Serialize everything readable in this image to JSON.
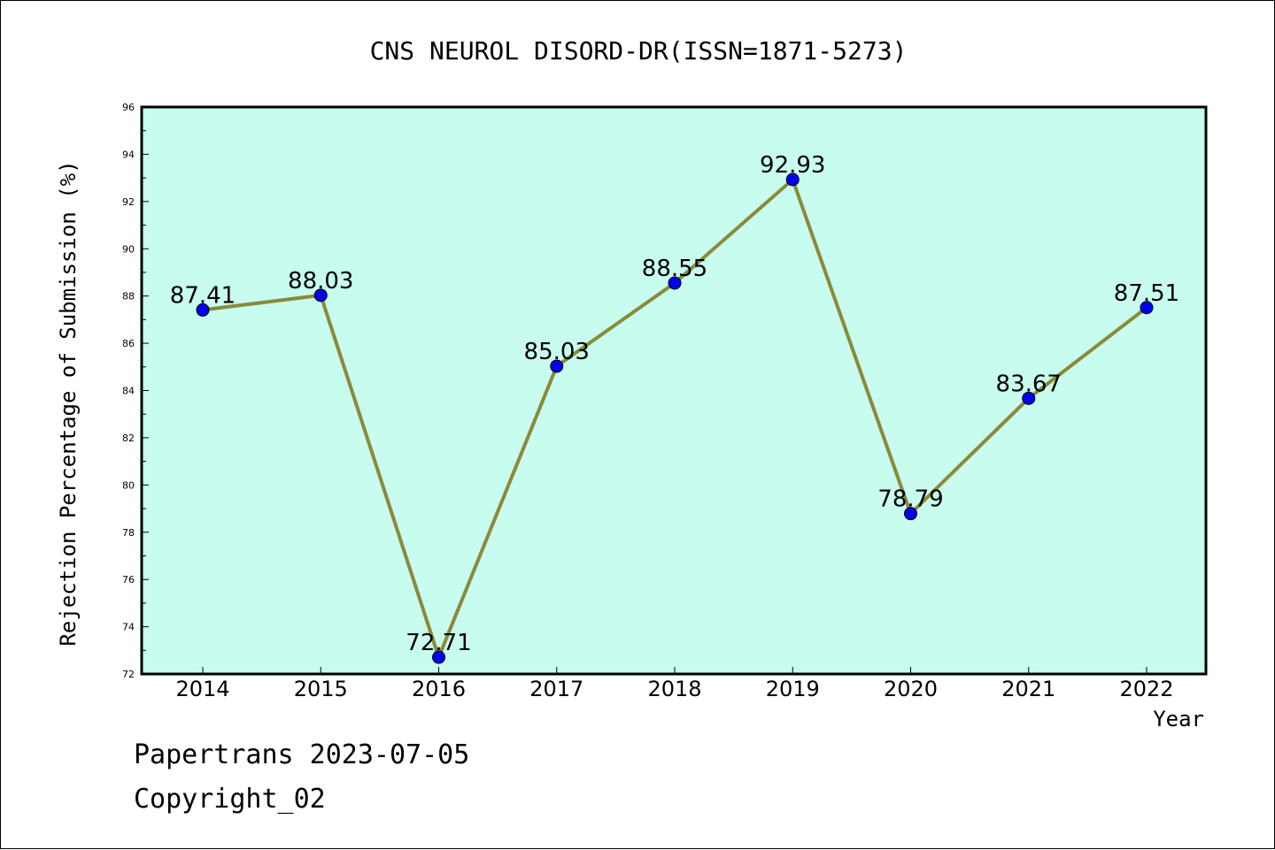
{
  "chart_data": {
    "type": "line",
    "title": "CNS NEUROL DISORD-DR(ISSN=1871-5273)",
    "xlabel": "Year",
    "ylabel": "Rejection Percentage of Submission (%)",
    "categories": [
      "2014",
      "2015",
      "2016",
      "2017",
      "2018",
      "2019",
      "2020",
      "2021",
      "2022"
    ],
    "values": [
      87.41,
      88.03,
      72.71,
      85.03,
      88.55,
      92.93,
      78.79,
      83.67,
      87.51
    ],
    "labels": [
      "87.41",
      "88.03",
      "72.71",
      "85.03",
      "88.55",
      "92.93",
      "78.79",
      "83.67",
      "87.51"
    ],
    "ylim": [
      72,
      96
    ],
    "yticks": [
      "72",
      "74",
      "76",
      "78",
      "80",
      "82",
      "84",
      "86",
      "88",
      "90",
      "92",
      "94",
      "96"
    ],
    "grid": false,
    "colors": {
      "plot_background": "#c8fcee",
      "line": "#8b8a3a",
      "marker": "#0000ee"
    }
  },
  "footer": {
    "line1": "Papertrans 2023-07-05",
    "line2": "Copyright_02"
  }
}
